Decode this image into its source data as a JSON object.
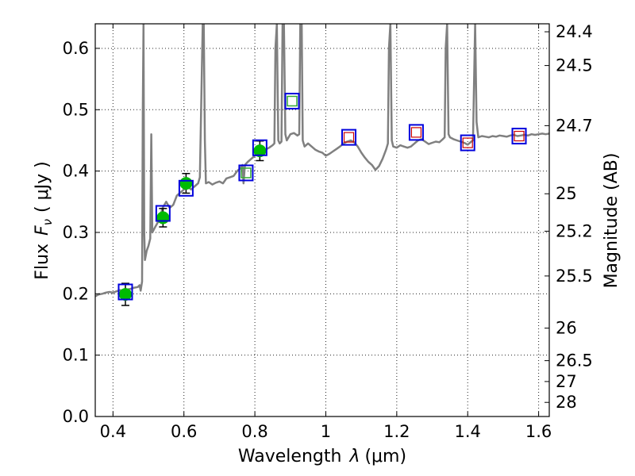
{
  "chart_data": {
    "type": "scatter",
    "xlabel": "Wavelength",
    "xlabel_symbol": "λ",
    "xlabel_unit": "(μm)",
    "ylabel": "Flux",
    "ylabel_symbol": "F",
    "ylabel_sub": "ν",
    "ylabel_unit": "( μJy )",
    "y2label": "Magnitude (AB)",
    "xlim": [
      0.35,
      1.63
    ],
    "ylim": [
      0.0,
      0.64
    ],
    "grid": true,
    "x_ticks": [
      0.4,
      0.6,
      0.8,
      1.0,
      1.2,
      1.4,
      1.6
    ],
    "x_tick_labels": [
      "0.4",
      "0.6",
      "0.8",
      "1",
      "1.2",
      "1.4",
      "1.6"
    ],
    "y_ticks": [
      0.0,
      0.1,
      0.2,
      0.3,
      0.4,
      0.5,
      0.6
    ],
    "y_tick_labels": [
      "0.0",
      "0.1",
      "0.2",
      "0.3",
      "0.4",
      "0.5",
      "0.6"
    ],
    "y2_tick_labels": [
      "24.4",
      "24.5",
      "24.7",
      "25",
      "25.2",
      "25.5",
      "26",
      "26.5",
      "27",
      "28"
    ],
    "y2_tick_flux": [
      0.627,
      0.572,
      0.474,
      0.363,
      0.302,
      0.229,
      0.144,
      0.091,
      0.057,
      0.023
    ],
    "colors": {
      "model": "#808080",
      "observed": "#00bb00",
      "model_box": "#0000dd",
      "model_box_ir": "#cc0000",
      "model_box_green": "#33aa33"
    },
    "observed": [
      {
        "x": 0.435,
        "y": 0.199,
        "yerr": 0.018
      },
      {
        "x": 0.541,
        "y": 0.324,
        "yerr": 0.015
      },
      {
        "x": 0.606,
        "y": 0.38,
        "yerr": 0.016
      },
      {
        "x": 0.814,
        "y": 0.433,
        "yerr": 0.016
      }
    ],
    "model_photometry": [
      {
        "x": 0.435,
        "y": 0.203,
        "inner": "none"
      },
      {
        "x": 0.541,
        "y": 0.331,
        "inner": "none"
      },
      {
        "x": 0.606,
        "y": 0.372,
        "inner": "none"
      },
      {
        "x": 0.775,
        "y": 0.397,
        "inner": "green"
      },
      {
        "x": 0.814,
        "y": 0.438,
        "inner": "none"
      },
      {
        "x": 0.905,
        "y": 0.514,
        "inner": "green"
      },
      {
        "x": 1.065,
        "y": 0.455,
        "inner": "red"
      },
      {
        "x": 1.255,
        "y": 0.463,
        "inner": "red"
      },
      {
        "x": 1.4,
        "y": 0.446,
        "inner": "red"
      },
      {
        "x": 1.545,
        "y": 0.457,
        "inner": "red"
      }
    ],
    "model_spectrum": [
      [
        0.35,
        0.196
      ],
      [
        0.36,
        0.199
      ],
      [
        0.37,
        0.2
      ],
      [
        0.38,
        0.202
      ],
      [
        0.39,
        0.203
      ],
      [
        0.4,
        0.202
      ],
      [
        0.41,
        0.204
      ],
      [
        0.42,
        0.206
      ],
      [
        0.43,
        0.205
      ],
      [
        0.44,
        0.207
      ],
      [
        0.45,
        0.208
      ],
      [
        0.46,
        0.21
      ],
      [
        0.47,
        0.211
      ],
      [
        0.475,
        0.214
      ],
      [
        0.478,
        0.205
      ],
      [
        0.482,
        0.22
      ],
      [
        0.484,
        0.5
      ],
      [
        0.486,
        0.64
      ],
      [
        0.488,
        0.3
      ],
      [
        0.49,
        0.255
      ],
      [
        0.495,
        0.27
      ],
      [
        0.5,
        0.278
      ],
      [
        0.505,
        0.29
      ],
      [
        0.508,
        0.46
      ],
      [
        0.511,
        0.3
      ],
      [
        0.52,
        0.31
      ],
      [
        0.53,
        0.32
      ],
      [
        0.54,
        0.34
      ],
      [
        0.55,
        0.35
      ],
      [
        0.56,
        0.34
      ],
      [
        0.57,
        0.345
      ],
      [
        0.58,
        0.36
      ],
      [
        0.59,
        0.365
      ],
      [
        0.6,
        0.37
      ],
      [
        0.61,
        0.375
      ],
      [
        0.62,
        0.37
      ],
      [
        0.63,
        0.375
      ],
      [
        0.64,
        0.38
      ],
      [
        0.645,
        0.39
      ],
      [
        0.65,
        0.55
      ],
      [
        0.653,
        0.64
      ],
      [
        0.656,
        0.64
      ],
      [
        0.659,
        0.45
      ],
      [
        0.662,
        0.38
      ],
      [
        0.67,
        0.382
      ],
      [
        0.68,
        0.378
      ],
      [
        0.69,
        0.381
      ],
      [
        0.7,
        0.383
      ],
      [
        0.71,
        0.38
      ],
      [
        0.72,
        0.388
      ],
      [
        0.73,
        0.39
      ],
      [
        0.74,
        0.392
      ],
      [
        0.75,
        0.4
      ],
      [
        0.76,
        0.405
      ],
      [
        0.765,
        0.41
      ],
      [
        0.768,
        0.38
      ],
      [
        0.772,
        0.41
      ],
      [
        0.78,
        0.415
      ],
      [
        0.79,
        0.42
      ],
      [
        0.8,
        0.425
      ],
      [
        0.81,
        0.43
      ],
      [
        0.82,
        0.432
      ],
      [
        0.83,
        0.435
      ],
      [
        0.84,
        0.438
      ],
      [
        0.85,
        0.442
      ],
      [
        0.855,
        0.445
      ],
      [
        0.858,
        0.6
      ],
      [
        0.862,
        0.64
      ],
      [
        0.866,
        0.45
      ],
      [
        0.87,
        0.445
      ],
      [
        0.875,
        0.448
      ],
      [
        0.878,
        0.64
      ],
      [
        0.882,
        0.64
      ],
      [
        0.886,
        0.46
      ],
      [
        0.89,
        0.45
      ],
      [
        0.9,
        0.46
      ],
      [
        0.91,
        0.462
      ],
      [
        0.92,
        0.458
      ],
      [
        0.925,
        0.46
      ],
      [
        0.928,
        0.64
      ],
      [
        0.932,
        0.64
      ],
      [
        0.935,
        0.45
      ],
      [
        0.94,
        0.44
      ],
      [
        0.95,
        0.445
      ],
      [
        0.96,
        0.44
      ],
      [
        0.97,
        0.435
      ],
      [
        0.98,
        0.432
      ],
      [
        0.99,
        0.43
      ],
      [
        1.0,
        0.425
      ],
      [
        1.01,
        0.428
      ],
      [
        1.02,
        0.432
      ],
      [
        1.03,
        0.436
      ],
      [
        1.04,
        0.44
      ],
      [
        1.05,
        0.445
      ],
      [
        1.06,
        0.448
      ],
      [
        1.07,
        0.45
      ],
      [
        1.08,
        0.447
      ],
      [
        1.09,
        0.44
      ],
      [
        1.1,
        0.43
      ],
      [
        1.11,
        0.422
      ],
      [
        1.12,
        0.415
      ],
      [
        1.13,
        0.41
      ],
      [
        1.14,
        0.402
      ],
      [
        1.15,
        0.408
      ],
      [
        1.16,
        0.42
      ],
      [
        1.17,
        0.435
      ],
      [
        1.175,
        0.445
      ],
      [
        1.178,
        0.6
      ],
      [
        1.182,
        0.64
      ],
      [
        1.186,
        0.45
      ],
      [
        1.19,
        0.44
      ],
      [
        1.2,
        0.438
      ],
      [
        1.21,
        0.442
      ],
      [
        1.22,
        0.44
      ],
      [
        1.23,
        0.438
      ],
      [
        1.24,
        0.44
      ],
      [
        1.25,
        0.445
      ],
      [
        1.26,
        0.45
      ],
      [
        1.27,
        0.452
      ],
      [
        1.28,
        0.448
      ],
      [
        1.29,
        0.444
      ],
      [
        1.3,
        0.446
      ],
      [
        1.31,
        0.448
      ],
      [
        1.32,
        0.447
      ],
      [
        1.33,
        0.452
      ],
      [
        1.335,
        0.455
      ],
      [
        1.338,
        0.6
      ],
      [
        1.342,
        0.64
      ],
      [
        1.346,
        0.46
      ],
      [
        1.35,
        0.455
      ],
      [
        1.36,
        0.452
      ],
      [
        1.37,
        0.45
      ],
      [
        1.38,
        0.448
      ],
      [
        1.39,
        0.446
      ],
      [
        1.4,
        0.443
      ],
      [
        1.41,
        0.448
      ],
      [
        1.415,
        0.45
      ],
      [
        1.418,
        0.55
      ],
      [
        1.421,
        0.64
      ],
      [
        1.425,
        0.48
      ],
      [
        1.43,
        0.455
      ],
      [
        1.44,
        0.457
      ],
      [
        1.45,
        0.456
      ],
      [
        1.46,
        0.455
      ],
      [
        1.47,
        0.457
      ],
      [
        1.48,
        0.456
      ],
      [
        1.49,
        0.458
      ],
      [
        1.5,
        0.457
      ],
      [
        1.51,
        0.456
      ],
      [
        1.52,
        0.458
      ],
      [
        1.53,
        0.459
      ],
      [
        1.54,
        0.457
      ],
      [
        1.55,
        0.458
      ],
      [
        1.56,
        0.459
      ],
      [
        1.57,
        0.458
      ],
      [
        1.58,
        0.46
      ],
      [
        1.59,
        0.459
      ],
      [
        1.6,
        0.46
      ],
      [
        1.61,
        0.461
      ],
      [
        1.62,
        0.46
      ],
      [
        1.63,
        0.461
      ]
    ]
  }
}
